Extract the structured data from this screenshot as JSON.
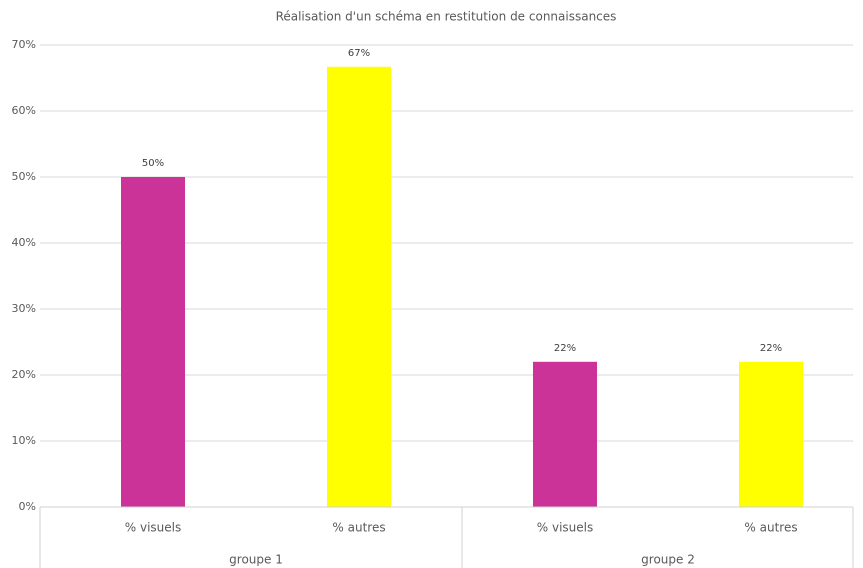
{
  "chart_data": {
    "type": "bar",
    "title": "Réalisation d'un schéma en restitution de connaissances",
    "categories": [
      "% visuels",
      "% autres",
      "% visuels",
      "% autres"
    ],
    "groups": [
      "groupe 1",
      "groupe 2"
    ],
    "values": [
      50,
      66.7,
      22,
      22
    ],
    "value_labels": [
      "50%",
      "67%",
      "22%",
      "22%"
    ],
    "colors": [
      "#cc3399",
      "#ffff00",
      "#cc3399",
      "#ffff00"
    ],
    "ylim": [
      0,
      70
    ],
    "yticks": [
      {
        "value": 0,
        "label": "0%"
      },
      {
        "value": 10,
        "label": "10%"
      },
      {
        "value": 20,
        "label": "20%"
      },
      {
        "value": 30,
        "label": "30%"
      },
      {
        "value": 40,
        "label": "40%"
      },
      {
        "value": 50,
        "label": "50%"
      },
      {
        "value": 60,
        "label": "60%"
      },
      {
        "value": 70,
        "label": "70%"
      }
    ],
    "grid": true
  }
}
